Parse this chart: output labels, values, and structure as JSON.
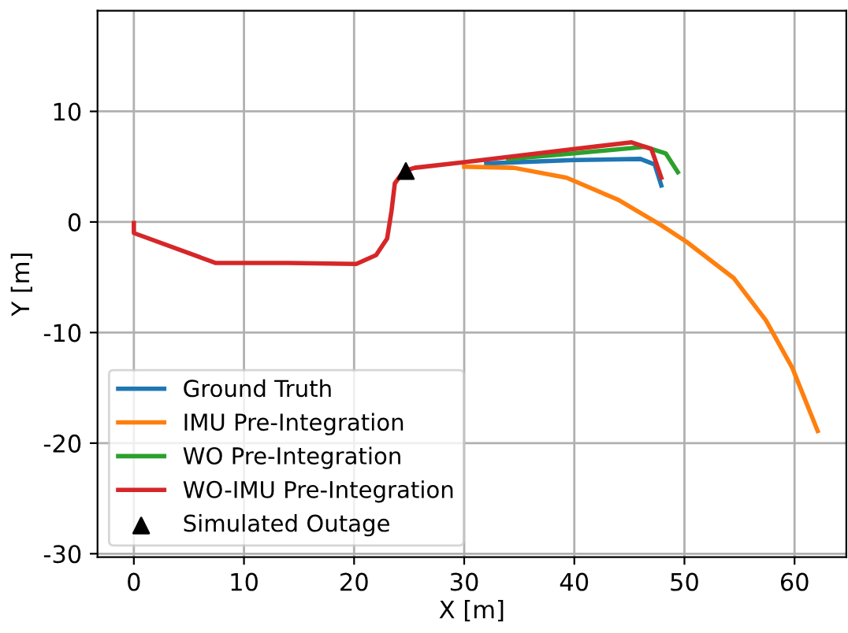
{
  "chart_data": {
    "type": "line",
    "xlabel": "X [m]",
    "ylabel": "Y [m]",
    "xlim": [
      -3.3,
      64.7
    ],
    "ylim": [
      -30.3,
      19.1
    ],
    "xticks": [
      0,
      10,
      20,
      30,
      40,
      50,
      60
    ],
    "yticks": [
      -30,
      -20,
      -10,
      0,
      10
    ],
    "grid": true,
    "legend": "bottom left",
    "series": [
      {
        "name": "Ground Truth",
        "color": "#1f77b4",
        "x": [
          32,
          40,
          46,
          47.3,
          47.9
        ],
        "values": [
          5.3,
          5.6,
          5.7,
          5.2,
          3.3
        ]
      },
      {
        "name": "IMU Pre-Integration",
        "color": "#ff7f0e",
        "x": [
          30,
          34.5,
          39.3,
          44.0,
          47.9,
          50.2,
          54.5,
          57.4,
          59.8,
          62.1
        ],
        "values": [
          5.0,
          4.9,
          4.0,
          2.0,
          -0.3,
          -1.8,
          -5.1,
          -8.9,
          -13.2,
          -18.9
        ]
      },
      {
        "name": "WO Pre-Integration",
        "color": "#2ca02c",
        "x": [
          34,
          40,
          46.4,
          48.3,
          49.4
        ],
        "values": [
          5.7,
          6.2,
          6.8,
          6.2,
          4.5
        ]
      },
      {
        "name": "WO-IMU Pre-Integration",
        "color": "#d62728",
        "x": [
          0,
          0,
          7.4,
          14,
          20.2,
          22,
          23,
          23.4,
          23.7,
          24.5,
          25.5,
          30,
          40,
          45.2,
          47.0,
          47.9
        ],
        "values": [
          -0.1,
          -1,
          -3.7,
          -3.7,
          -3.8,
          -3.0,
          -1.5,
          1,
          3.5,
          4.6,
          4.9,
          5.4,
          6.6,
          7.2,
          6.6,
          4.0
        ]
      },
      {
        "name": "Simulated Outage",
        "type": "scatter",
        "marker": "triangle",
        "color": "#000000",
        "x": [
          24.7
        ],
        "values": [
          4.6
        ]
      }
    ]
  }
}
